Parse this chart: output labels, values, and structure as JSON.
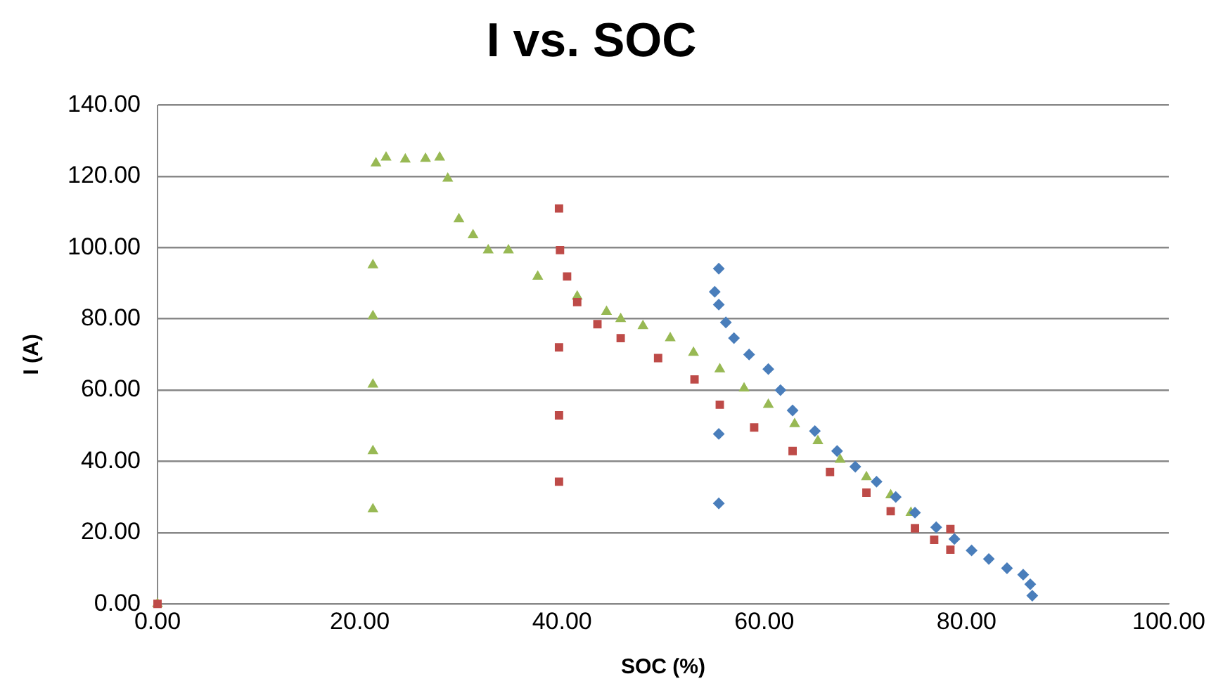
{
  "chart_data": {
    "type": "scatter",
    "title": "I vs. SOC",
    "xlabel": "SOC (%)",
    "ylabel": "I (A)",
    "xlim": [
      0,
      100
    ],
    "ylim": [
      0,
      140
    ],
    "xticks": [
      {
        "value": 0,
        "label": "0.00"
      },
      {
        "value": 20,
        "label": "20.00"
      },
      {
        "value": 40,
        "label": "40.00"
      },
      {
        "value": 60,
        "label": "60.00"
      },
      {
        "value": 80,
        "label": "80.00"
      },
      {
        "value": 100,
        "label": "100.00"
      }
    ],
    "yticks": [
      {
        "value": 0,
        "label": "0.00"
      },
      {
        "value": 20,
        "label": "20.00"
      },
      {
        "value": 40,
        "label": "40.00"
      },
      {
        "value": 60,
        "label": "60.00"
      },
      {
        "value": 80,
        "label": "80.00"
      },
      {
        "value": 100,
        "label": "100.00"
      },
      {
        "value": 120,
        "label": "120.00"
      },
      {
        "value": 140,
        "label": "140.00"
      }
    ],
    "grid": "y",
    "legend": false,
    "series": [
      {
        "color": "#4a7ebb",
        "marker": "diamond",
        "x": [
          55.5,
          55.5,
          55.5,
          55.1,
          55.5,
          56.2,
          57.0,
          58.5,
          60.4,
          61.6,
          62.8,
          65.0,
          67.2,
          69.0,
          71.1,
          73.0,
          74.9,
          77.0,
          78.8,
          80.5,
          82.2,
          84.0,
          85.6,
          86.3,
          86.5
        ],
        "values": [
          94.1,
          47.7,
          28.2,
          87.6,
          84.0,
          79.0,
          74.6,
          70.0,
          65.9,
          60.0,
          54.3,
          48.5,
          42.9,
          38.5,
          34.3,
          30.0,
          25.6,
          21.5,
          18.2,
          15.0,
          12.6,
          10.0,
          8.2,
          5.5,
          2.3
        ]
      },
      {
        "color": "#be4b48",
        "marker": "square",
        "x": [
          0,
          39.7,
          39.7,
          39.7,
          39.7,
          39.8,
          40.5,
          41.5,
          43.5,
          45.8,
          49.5,
          53.1,
          55.6,
          59.0,
          62.8,
          66.5,
          70.1,
          72.5,
          74.9,
          76.8,
          78.4,
          78.4
        ],
        "values": [
          0,
          111,
          72,
          52.9,
          34.3,
          99.3,
          91.9,
          84.7,
          78.5,
          74.6,
          69.0,
          63.0,
          55.9,
          49.5,
          42.9,
          37.0,
          31.2,
          26.0,
          21.2,
          18.0,
          15.2,
          21.0
        ]
      },
      {
        "color": "#98b954",
        "marker": "triangle",
        "x": [
          0,
          21.3,
          21.3,
          21.3,
          21.3,
          21.3,
          21.6,
          22.6,
          24.5,
          26.5,
          27.9,
          28.7,
          29.8,
          31.2,
          32.7,
          34.7,
          37.6,
          41.5,
          44.4,
          45.8,
          48.0,
          50.7,
          53.0,
          55.6,
          58.0,
          60.4,
          63.0,
          65.3,
          67.5,
          70.1,
          72.5,
          74.5
        ],
        "values": [
          0,
          95.1,
          80.8,
          61.6,
          42.9,
          26.6,
          123.7,
          125.3,
          124.8,
          125.0,
          125.3,
          119.4,
          108.0,
          103.5,
          99.3,
          99.3,
          91.9,
          86.3,
          82.0,
          80.0,
          78.0,
          74.6,
          70.5,
          65.9,
          60.5,
          55.9,
          50.5,
          45.7,
          40.5,
          35.6,
          30.5,
          25.6
        ]
      }
    ]
  }
}
